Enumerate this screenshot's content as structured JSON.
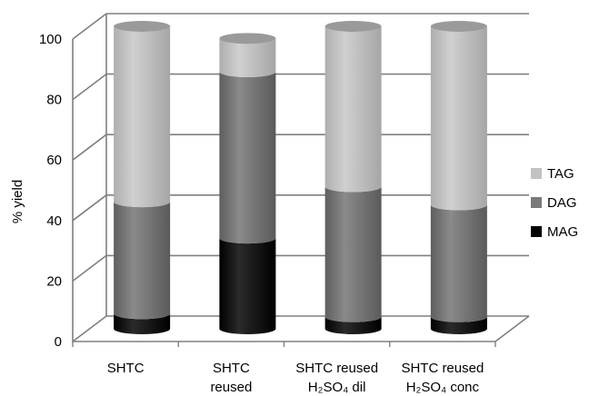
{
  "chart_data": {
    "type": "bar",
    "stacked": true,
    "style": "3d-cylinder",
    "categories": [
      [
        "SHTC"
      ],
      [
        "SHTC",
        "reused"
      ],
      [
        "SHTC reused",
        "H₂SO₄ dil"
      ],
      [
        "SHTC reused",
        "H₂SO₄ conc"
      ]
    ],
    "series": [
      {
        "name": "MAG",
        "values": [
          5,
          30,
          4,
          4
        ],
        "color": "#000000"
      },
      {
        "name": "DAG",
        "values": [
          37,
          55,
          43,
          37
        ],
        "color": "#7a7a7a"
      },
      {
        "name": "TAG",
        "values": [
          58,
          11,
          53,
          59
        ],
        "color": "#c2c2c2"
      }
    ],
    "ylabel": "% yield",
    "xlabel": "",
    "ylim": [
      0,
      100
    ],
    "yticks": [
      0,
      20,
      40,
      60,
      80,
      100
    ],
    "grid": true,
    "legend_position": "right",
    "legend_order": [
      "TAG",
      "DAG",
      "MAG"
    ]
  }
}
